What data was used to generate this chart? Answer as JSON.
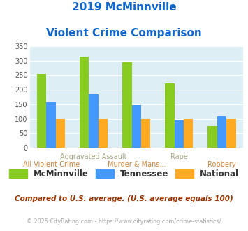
{
  "title_line1": "2019 McMinnville",
  "title_line2": "Violent Crime Comparison",
  "series": {
    "McMinnville": [
      253,
      315,
      295,
      222,
      75
    ],
    "Tennessee": [
      156,
      183,
      147,
      98,
      110
    ],
    "National": [
      100,
      100,
      100,
      100,
      100
    ]
  },
  "colors": {
    "McMinnville": "#88cc22",
    "Tennessee": "#4499ff",
    "National": "#ffaa22"
  },
  "ylim": [
    0,
    350
  ],
  "yticks": [
    0,
    50,
    100,
    150,
    200,
    250,
    300,
    350
  ],
  "plot_bg": "#ddeef5",
  "title_color": "#1166cc",
  "xlabel_top_color": "#aaa888",
  "xlabel_bottom_color": "#cc8844",
  "top_labels": [
    [
      1,
      "Aggravated Assault"
    ],
    [
      3,
      "Rape"
    ]
  ],
  "bottom_labels": [
    [
      0,
      "All Violent Crime"
    ],
    [
      2,
      "Murder & Mans..."
    ],
    [
      4,
      "Robbery"
    ]
  ],
  "footer_note": "Compared to U.S. average. (U.S. average equals 100)",
  "footer_copy": "© 2025 CityRating.com - https://www.cityrating.com/crime-statistics/",
  "footer_note_color": "#993300",
  "footer_copy_color": "#aaaaaa",
  "legend_labels": [
    "McMinnville",
    "Tennessee",
    "National"
  ]
}
